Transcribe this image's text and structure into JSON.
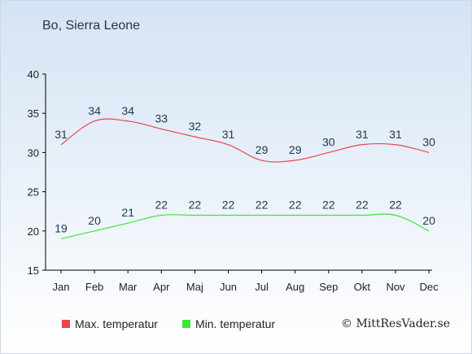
{
  "chart_data": {
    "type": "line",
    "title": "Bo, Sierra Leone",
    "categories": [
      "Jan",
      "Feb",
      "Mar",
      "Apr",
      "Maj",
      "Jun",
      "Jul",
      "Aug",
      "Sep",
      "Okt",
      "Nov",
      "Dec"
    ],
    "series": [
      {
        "name": "Max. temperatur",
        "color": "#e8474d",
        "values": [
          31,
          34,
          34,
          33,
          32,
          31,
          29,
          29,
          30,
          31,
          31,
          30
        ]
      },
      {
        "name": "Min. temperatur",
        "color": "#41e43a",
        "values": [
          19,
          20,
          21,
          22,
          22,
          22,
          22,
          22,
          22,
          22,
          22,
          20
        ]
      }
    ],
    "y_ticks": [
      15,
      20,
      25,
      30,
      35,
      40
    ],
    "ylim": [
      15,
      40
    ],
    "grid": false,
    "legend_position": "bottom-left"
  },
  "credit": "© MittResVader.se"
}
